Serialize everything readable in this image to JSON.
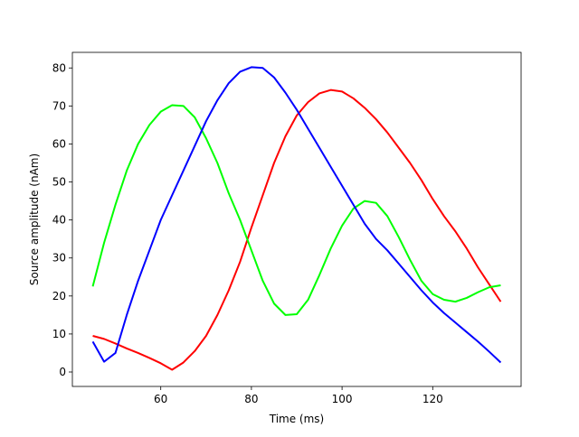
{
  "chart_data": {
    "type": "line",
    "x_label": "Time (ms)",
    "y_label": "Source amplitude (nAm)",
    "x": [
      45,
      47.5,
      50,
      52.5,
      55,
      57.5,
      60,
      62.5,
      65,
      67.5,
      70,
      72.5,
      75,
      77.5,
      80,
      82.5,
      85,
      87.5,
      90,
      92.5,
      95,
      97.5,
      100,
      102.5,
      105,
      107.5,
      110,
      112.5,
      115,
      117.5,
      120,
      122.5,
      125,
      127.5,
      130,
      132.5,
      135
    ],
    "series": [
      {
        "color": "#ff0000",
        "values": [
          9.5,
          8.7,
          7.5,
          6.2,
          5,
          3.7,
          2.3,
          0.6,
          2.5,
          5.5,
          9.5,
          15,
          21.5,
          29,
          38,
          46.5,
          55,
          62,
          67.5,
          71,
          73.3,
          74.2,
          73.8,
          72,
          69.5,
          66.5,
          63,
          59,
          55,
          50.5,
          45.5,
          41,
          37,
          32.5,
          27.5,
          23,
          18.5
        ]
      },
      {
        "color": "#00ff00",
        "values": [
          22.5,
          34,
          44,
          53,
          60,
          65,
          68.5,
          70.2,
          70,
          67,
          61.5,
          55,
          47,
          40,
          32,
          24,
          18,
          15,
          15.2,
          19,
          25.5,
          32.5,
          38.5,
          43,
          45,
          44.5,
          41,
          35.5,
          29.5,
          24,
          20.5,
          19,
          18.5,
          19.5,
          21,
          22.3,
          22.8
        ]
      },
      {
        "color": "#0000ff",
        "values": [
          8,
          2.7,
          5,
          15,
          24,
          32,
          40,
          46.5,
          53,
          59.5,
          66,
          71.5,
          76,
          79,
          80.2,
          80,
          77.5,
          73.5,
          69,
          64,
          59,
          54,
          49,
          44,
          39,
          35,
          32,
          28.5,
          25,
          21.5,
          18.3,
          15.5,
          13,
          10.5,
          8,
          5.3,
          2.5
        ]
      }
    ],
    "xlim": [
      40.5,
      139.5
    ],
    "xticks": [
      60,
      80,
      100,
      120
    ],
    "ylim": [
      -3.8,
      84.1
    ],
    "yticks": [
      0,
      10,
      20,
      30,
      40,
      50,
      60,
      70,
      80
    ]
  }
}
